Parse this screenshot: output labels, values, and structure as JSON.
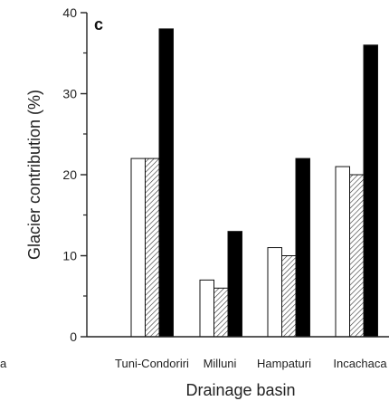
{
  "chart_data": {
    "type": "bar",
    "panel_label": "c",
    "ylabel": "Glacier contribution (%)",
    "xlabel": "Drainage basin",
    "ylim": [
      0,
      40
    ],
    "yticks": [
      0,
      10,
      20,
      30,
      40
    ],
    "categories": [
      "Tuni-Condoriri",
      "Milluni",
      "Hampaturi",
      "Incachaca"
    ],
    "edge_fragment": "a",
    "series": [
      {
        "style": "white",
        "values": [
          22,
          7,
          11,
          21
        ]
      },
      {
        "style": "hatched",
        "values": [
          22,
          6,
          10,
          20
        ]
      },
      {
        "style": "black",
        "values": [
          38,
          13,
          22,
          36
        ]
      }
    ],
    "legend": "none",
    "grid": false
  },
  "colors": {
    "axis": "#222222",
    "black_bar": "#000000",
    "white_bar": "#ffffff"
  }
}
